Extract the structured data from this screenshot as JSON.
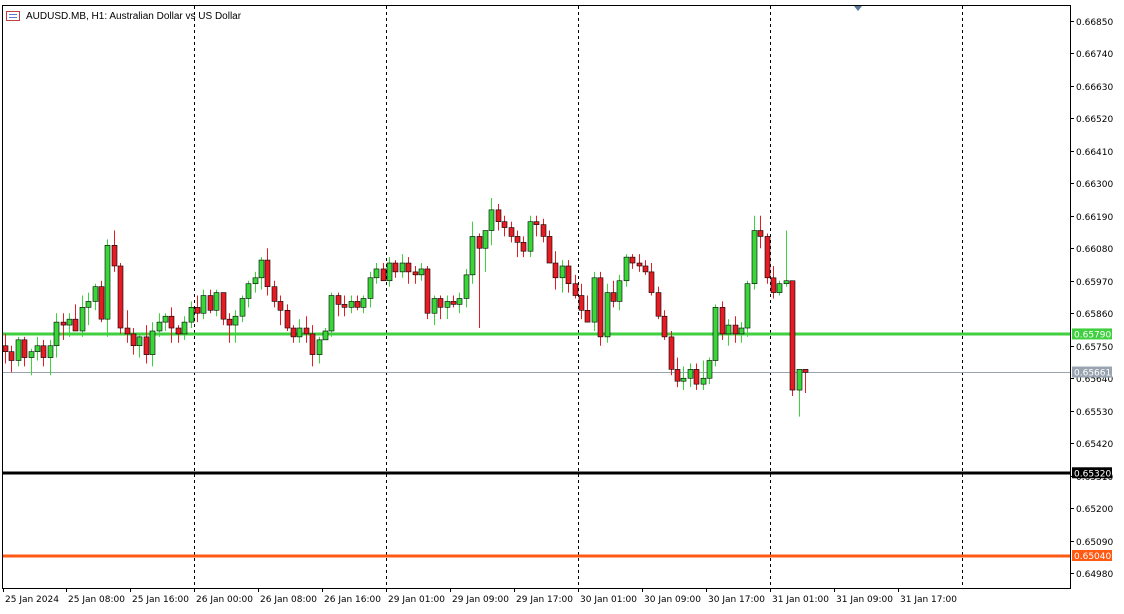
{
  "window": {
    "symbol_title": "AUDUSD.MB, H1:  Australian Dollar vs US Dollar"
  },
  "chart_data": {
    "type": "candlestick",
    "symbol": "AUDUSD.MB",
    "timeframe": "H1",
    "ylim": [
      0.6493,
      0.669
    ],
    "y_ticks": [
      "0.66850",
      "0.66740",
      "0.66630",
      "0.66520",
      "0.66410",
      "0.66300",
      "0.66190",
      "0.66080",
      "0.65970",
      "0.65860",
      "0.65750",
      "0.65640",
      "0.65530",
      "0.65420",
      "0.65310",
      "0.65200",
      "0.65090",
      "0.64980"
    ],
    "x_labels": [
      "25 Jan 2024",
      "25 Jan 08:00",
      "25 Jan 16:00",
      "26 Jan 00:00",
      "26 Jan 08:00",
      "26 Jan 16:00",
      "29 Jan 01:00",
      "29 Jan 09:00",
      "29 Jan 17:00",
      "30 Jan 01:00",
      "30 Jan 09:00",
      "30 Jan 17:00",
      "31 Jan 01:00",
      "31 Jan 09:00",
      "31 Jan 17:00"
    ],
    "separators_after_candle": [
      30,
      60,
      90,
      120,
      150
    ],
    "horizontal_lines": [
      {
        "price": 0.6579,
        "label": "0.65790",
        "color": "#3fcf3f",
        "width": 3
      },
      {
        "price": 0.65661,
        "label": "0.65661",
        "color": "#9aa4b0",
        "width": 1
      },
      {
        "price": 0.6532,
        "label": "0.65320",
        "color": "#000000",
        "width": 3
      },
      {
        "price": 0.6504,
        "label": "0.65040",
        "color": "#ff5a14",
        "width": 3
      }
    ],
    "colors": {
      "bull": "#39d539",
      "bear": "#e51c23",
      "axis": "#000000",
      "grid": "#000000"
    },
    "candles": [
      [
        0.6575,
        0.6579,
        0.6569,
        0.6573
      ],
      [
        0.6573,
        0.6575,
        0.6566,
        0.657
      ],
      [
        0.657,
        0.6578,
        0.6568,
        0.6577
      ],
      [
        0.6577,
        0.6578,
        0.6568,
        0.6571
      ],
      [
        0.6571,
        0.6574,
        0.6565,
        0.6573
      ],
      [
        0.6573,
        0.6578,
        0.657,
        0.6575
      ],
      [
        0.6575,
        0.6577,
        0.6568,
        0.6571
      ],
      [
        0.6571,
        0.6577,
        0.6565,
        0.6575
      ],
      [
        0.6575,
        0.6586,
        0.6571,
        0.6583
      ],
      [
        0.6583,
        0.6586,
        0.6577,
        0.6582
      ],
      [
        0.6582,
        0.6586,
        0.6578,
        0.6584
      ],
      [
        0.6584,
        0.6589,
        0.658,
        0.658
      ],
      [
        0.658,
        0.6592,
        0.6578,
        0.6588
      ],
      [
        0.6588,
        0.6593,
        0.6582,
        0.659
      ],
      [
        0.659,
        0.6596,
        0.6587,
        0.6595
      ],
      [
        0.6595,
        0.6597,
        0.6583,
        0.6584
      ],
      [
        0.6584,
        0.6611,
        0.6578,
        0.6609
      ],
      [
        0.6609,
        0.6614,
        0.66,
        0.6602
      ],
      [
        0.6602,
        0.6603,
        0.6579,
        0.6581
      ],
      [
        0.6581,
        0.6587,
        0.6576,
        0.6579
      ],
      [
        0.6579,
        0.6581,
        0.6572,
        0.6575
      ],
      [
        0.6575,
        0.6579,
        0.6571,
        0.6578
      ],
      [
        0.6578,
        0.6582,
        0.6569,
        0.6572
      ],
      [
        0.6572,
        0.6583,
        0.6568,
        0.658
      ],
      [
        0.658,
        0.6586,
        0.6578,
        0.6583
      ],
      [
        0.6583,
        0.6586,
        0.658,
        0.6585
      ],
      [
        0.6585,
        0.6588,
        0.6576,
        0.6581
      ],
      [
        0.6581,
        0.6582,
        0.6576,
        0.6579
      ],
      [
        0.6579,
        0.6585,
        0.6577,
        0.6583
      ],
      [
        0.6583,
        0.659,
        0.6581,
        0.6588
      ],
      [
        0.6588,
        0.6592,
        0.6583,
        0.6586
      ],
      [
        0.6586,
        0.6594,
        0.6584,
        0.6592
      ],
      [
        0.6592,
        0.6594,
        0.6586,
        0.6587
      ],
      [
        0.6587,
        0.6594,
        0.6585,
        0.6593
      ],
      [
        0.6593,
        0.6593,
        0.6582,
        0.6584
      ],
      [
        0.6584,
        0.6586,
        0.6576,
        0.6582
      ],
      [
        0.6582,
        0.6587,
        0.6576,
        0.6585
      ],
      [
        0.6585,
        0.6592,
        0.6583,
        0.6591
      ],
      [
        0.6591,
        0.6597,
        0.6588,
        0.6596
      ],
      [
        0.6596,
        0.66,
        0.6593,
        0.6598
      ],
      [
        0.6598,
        0.6605,
        0.6594,
        0.6604
      ],
      [
        0.6604,
        0.6608,
        0.6592,
        0.6595
      ],
      [
        0.6595,
        0.6597,
        0.6588,
        0.659
      ],
      [
        0.659,
        0.6592,
        0.6582,
        0.6587
      ],
      [
        0.6587,
        0.6589,
        0.658,
        0.6581
      ],
      [
        0.6581,
        0.6582,
        0.6576,
        0.6578
      ],
      [
        0.6578,
        0.6584,
        0.6576,
        0.6581
      ],
      [
        0.6581,
        0.6585,
        0.6576,
        0.6579
      ],
      [
        0.6579,
        0.6582,
        0.6568,
        0.6572
      ],
      [
        0.6572,
        0.6578,
        0.6569,
        0.6577
      ],
      [
        0.6577,
        0.6581,
        0.6577,
        0.658
      ],
      [
        0.658,
        0.6593,
        0.6578,
        0.6592
      ],
      [
        0.6592,
        0.6593,
        0.6585,
        0.6589
      ],
      [
        0.6589,
        0.6592,
        0.6585,
        0.6588
      ],
      [
        0.6588,
        0.6592,
        0.6586,
        0.659
      ],
      [
        0.659,
        0.6592,
        0.6587,
        0.6588
      ],
      [
        0.6588,
        0.6592,
        0.6586,
        0.6591
      ],
      [
        0.6591,
        0.66,
        0.6588,
        0.6598
      ],
      [
        0.6598,
        0.6603,
        0.6596,
        0.6601
      ],
      [
        0.6601,
        0.6603,
        0.6597,
        0.6597
      ],
      [
        0.6597,
        0.6605,
        0.6595,
        0.6603
      ],
      [
        0.6603,
        0.6604,
        0.6598,
        0.66
      ],
      [
        0.66,
        0.6606,
        0.6598,
        0.6603
      ],
      [
        0.6603,
        0.6605,
        0.6596,
        0.66
      ],
      [
        0.66,
        0.6602,
        0.6596,
        0.6599
      ],
      [
        0.6599,
        0.6603,
        0.6597,
        0.6601
      ],
      [
        0.6601,
        0.6602,
        0.6584,
        0.6586
      ],
      [
        0.6586,
        0.6592,
        0.6582,
        0.6591
      ],
      [
        0.6591,
        0.6592,
        0.6584,
        0.6588
      ],
      [
        0.6588,
        0.6592,
        0.6584,
        0.659
      ],
      [
        0.659,
        0.6592,
        0.6588,
        0.6589
      ],
      [
        0.6589,
        0.6593,
        0.6586,
        0.6591
      ],
      [
        0.6591,
        0.6601,
        0.6588,
        0.6599
      ],
      [
        0.6599,
        0.6617,
        0.6596,
        0.6612
      ],
      [
        0.6612,
        0.6613,
        0.6581,
        0.6608
      ],
      [
        0.6608,
        0.6614,
        0.66,
        0.6614
      ],
      [
        0.6614,
        0.6625,
        0.6609,
        0.6621
      ],
      [
        0.6621,
        0.6623,
        0.6614,
        0.6617
      ],
      [
        0.6617,
        0.6619,
        0.6612,
        0.6615
      ],
      [
        0.6615,
        0.6617,
        0.661,
        0.6612
      ],
      [
        0.6612,
        0.6614,
        0.6605,
        0.661
      ],
      [
        0.661,
        0.6612,
        0.6605,
        0.6607
      ],
      [
        0.6607,
        0.6619,
        0.6605,
        0.6617
      ],
      [
        0.6617,
        0.6619,
        0.6612,
        0.6616
      ],
      [
        0.6616,
        0.6618,
        0.661,
        0.6612
      ],
      [
        0.6612,
        0.6614,
        0.6603,
        0.6603
      ],
      [
        0.6603,
        0.6607,
        0.6594,
        0.6598
      ],
      [
        0.6598,
        0.6604,
        0.6593,
        0.6602
      ],
      [
        0.6602,
        0.6604,
        0.6593,
        0.6596
      ],
      [
        0.6596,
        0.6599,
        0.6591,
        0.6592
      ],
      [
        0.6592,
        0.6596,
        0.6584,
        0.6587
      ],
      [
        0.6587,
        0.6592,
        0.6583,
        0.6583
      ],
      [
        0.6583,
        0.66,
        0.658,
        0.6598
      ],
      [
        0.6598,
        0.66,
        0.6575,
        0.6578
      ],
      [
        0.6578,
        0.6596,
        0.6576,
        0.6593
      ],
      [
        0.6593,
        0.6597,
        0.6588,
        0.659
      ],
      [
        0.659,
        0.6599,
        0.6587,
        0.6597
      ],
      [
        0.6597,
        0.6606,
        0.6595,
        0.6605
      ],
      [
        0.6605,
        0.6606,
        0.6601,
        0.6603
      ],
      [
        0.6603,
        0.6606,
        0.66,
        0.6602
      ],
      [
        0.6602,
        0.6604,
        0.6599,
        0.66
      ],
      [
        0.66,
        0.6603,
        0.6592,
        0.6593
      ],
      [
        0.6593,
        0.6595,
        0.6584,
        0.6585
      ],
      [
        0.6585,
        0.6587,
        0.6577,
        0.6578
      ],
      [
        0.6578,
        0.658,
        0.6565,
        0.6567
      ],
      [
        0.6567,
        0.6571,
        0.6561,
        0.6563
      ],
      [
        0.6563,
        0.6568,
        0.656,
        0.6564
      ],
      [
        0.6564,
        0.6569,
        0.6561,
        0.6567
      ],
      [
        0.6567,
        0.6569,
        0.656,
        0.6562
      ],
      [
        0.6562,
        0.657,
        0.656,
        0.6564
      ],
      [
        0.6564,
        0.6571,
        0.6562,
        0.657
      ],
      [
        0.657,
        0.6589,
        0.6568,
        0.6588
      ],
      [
        0.6588,
        0.659,
        0.6577,
        0.6579
      ],
      [
        0.6579,
        0.6584,
        0.6575,
        0.6582
      ],
      [
        0.6582,
        0.6585,
        0.6576,
        0.6579
      ],
      [
        0.6579,
        0.6583,
        0.6576,
        0.6581
      ],
      [
        0.6581,
        0.6597,
        0.6578,
        0.6596
      ],
      [
        0.6596,
        0.6619,
        0.6594,
        0.6614
      ],
      [
        0.6614,
        0.6619,
        0.6608,
        0.6612
      ],
      [
        0.6612,
        0.6613,
        0.6596,
        0.6598
      ],
      [
        0.6598,
        0.6602,
        0.6591,
        0.6593
      ],
      [
        0.6593,
        0.6597,
        0.6592,
        0.6596
      ],
      [
        0.6596,
        0.6614,
        0.6595,
        0.6597
      ],
      [
        0.6597,
        0.6597,
        0.6558,
        0.656
      ],
      [
        0.656,
        0.6566,
        0.6551,
        0.6567
      ],
      [
        0.6567,
        0.6567,
        0.6559,
        0.6566
      ]
    ]
  }
}
